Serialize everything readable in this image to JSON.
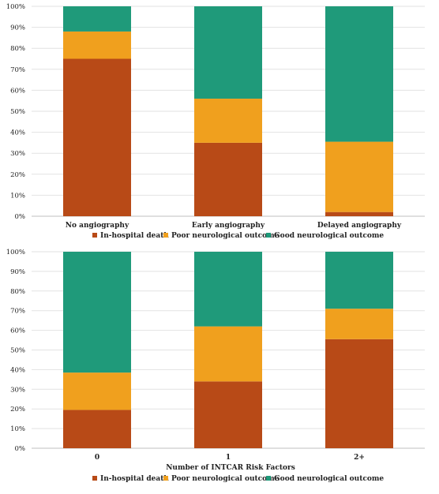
{
  "chart_data": [
    {
      "type": "bar",
      "stacked": true,
      "categories": [
        "No angiography",
        "Early angiography",
        "Delayed angiography"
      ],
      "series": [
        {
          "name": "In-hospital death",
          "color": "#b84a17",
          "values": [
            75,
            35,
            2
          ]
        },
        {
          "name": "Poor neurological outcome",
          "color": "#f0a01e",
          "values": [
            13,
            21,
            33.5
          ]
        },
        {
          "name": "Good neurological outcome",
          "color": "#1f9a7a",
          "values": [
            12,
            44,
            64.5
          ]
        }
      ],
      "ylim": [
        0,
        100
      ],
      "yticks": [
        "0%",
        "10%",
        "20%",
        "30%",
        "40%",
        "50%",
        "60%",
        "70%",
        "80%",
        "90%",
        "100%"
      ],
      "xlabel": "",
      "legend": "bottom"
    },
    {
      "type": "bar",
      "stacked": true,
      "categories": [
        "0",
        "1",
        "2+"
      ],
      "series": [
        {
          "name": "In-hospital death",
          "color": "#b84a17",
          "values": [
            19.5,
            34,
            55.5
          ]
        },
        {
          "name": "Poor neurological outcome",
          "color": "#f0a01e",
          "values": [
            19,
            28,
            15.5
          ]
        },
        {
          "name": "Good neurological outcome",
          "color": "#1f9a7a",
          "values": [
            61.5,
            38,
            29
          ]
        }
      ],
      "ylim": [
        0,
        100
      ],
      "yticks": [
        "0%",
        "10%",
        "20%",
        "30%",
        "40%",
        "50%",
        "60%",
        "70%",
        "80%",
        "90%",
        "100%"
      ],
      "xlabel": "Number  of INTCAR  Risk  Factors",
      "legend": "bottom"
    }
  ]
}
